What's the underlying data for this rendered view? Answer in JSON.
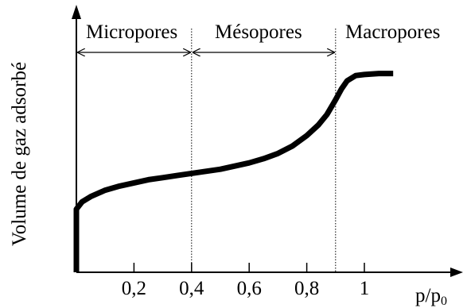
{
  "chart_data": {
    "type": "line",
    "title": "",
    "xlabel": "p/p",
    "xlabel_subscript": "0",
    "ylabel": "Volume de gaz adsorbé",
    "xlim": [
      0,
      1.15
    ],
    "ticks": [
      {
        "value": 0.2,
        "label": "0,2"
      },
      {
        "value": 0.4,
        "label": "0,4"
      },
      {
        "value": 0.6,
        "label": "0,6"
      },
      {
        "value": 0.8,
        "label": "0,8"
      },
      {
        "value": 1.0,
        "label": "1"
      }
    ],
    "regions": [
      {
        "label": "Micropores",
        "from": 0,
        "to": 0.4
      },
      {
        "label": "Mésopores",
        "from": 0.4,
        "to": 0.9
      },
      {
        "label": "Macropores",
        "from": 0.9,
        "to": 1.15
      }
    ],
    "boundaries": [
      0.4,
      0.9
    ],
    "series": [
      {
        "x": [
          0,
          0,
          0,
          0.02,
          0.05,
          0.1,
          0.15,
          0.2,
          0.25,
          0.3,
          0.35,
          0.4,
          0.45,
          0.5,
          0.55,
          0.6,
          0.65,
          0.7,
          0.75,
          0.8,
          0.84,
          0.87,
          0.9,
          0.92,
          0.94,
          0.97,
          1.0,
          1.05,
          1.1
        ],
        "y": [
          0.0,
          0.15,
          0.3,
          0.335,
          0.36,
          0.39,
          0.41,
          0.425,
          0.44,
          0.45,
          0.46,
          0.47,
          0.48,
          0.49,
          0.505,
          0.52,
          0.54,
          0.565,
          0.6,
          0.65,
          0.7,
          0.75,
          0.82,
          0.87,
          0.91,
          0.935,
          0.94,
          0.945,
          0.945
        ]
      }
    ]
  }
}
